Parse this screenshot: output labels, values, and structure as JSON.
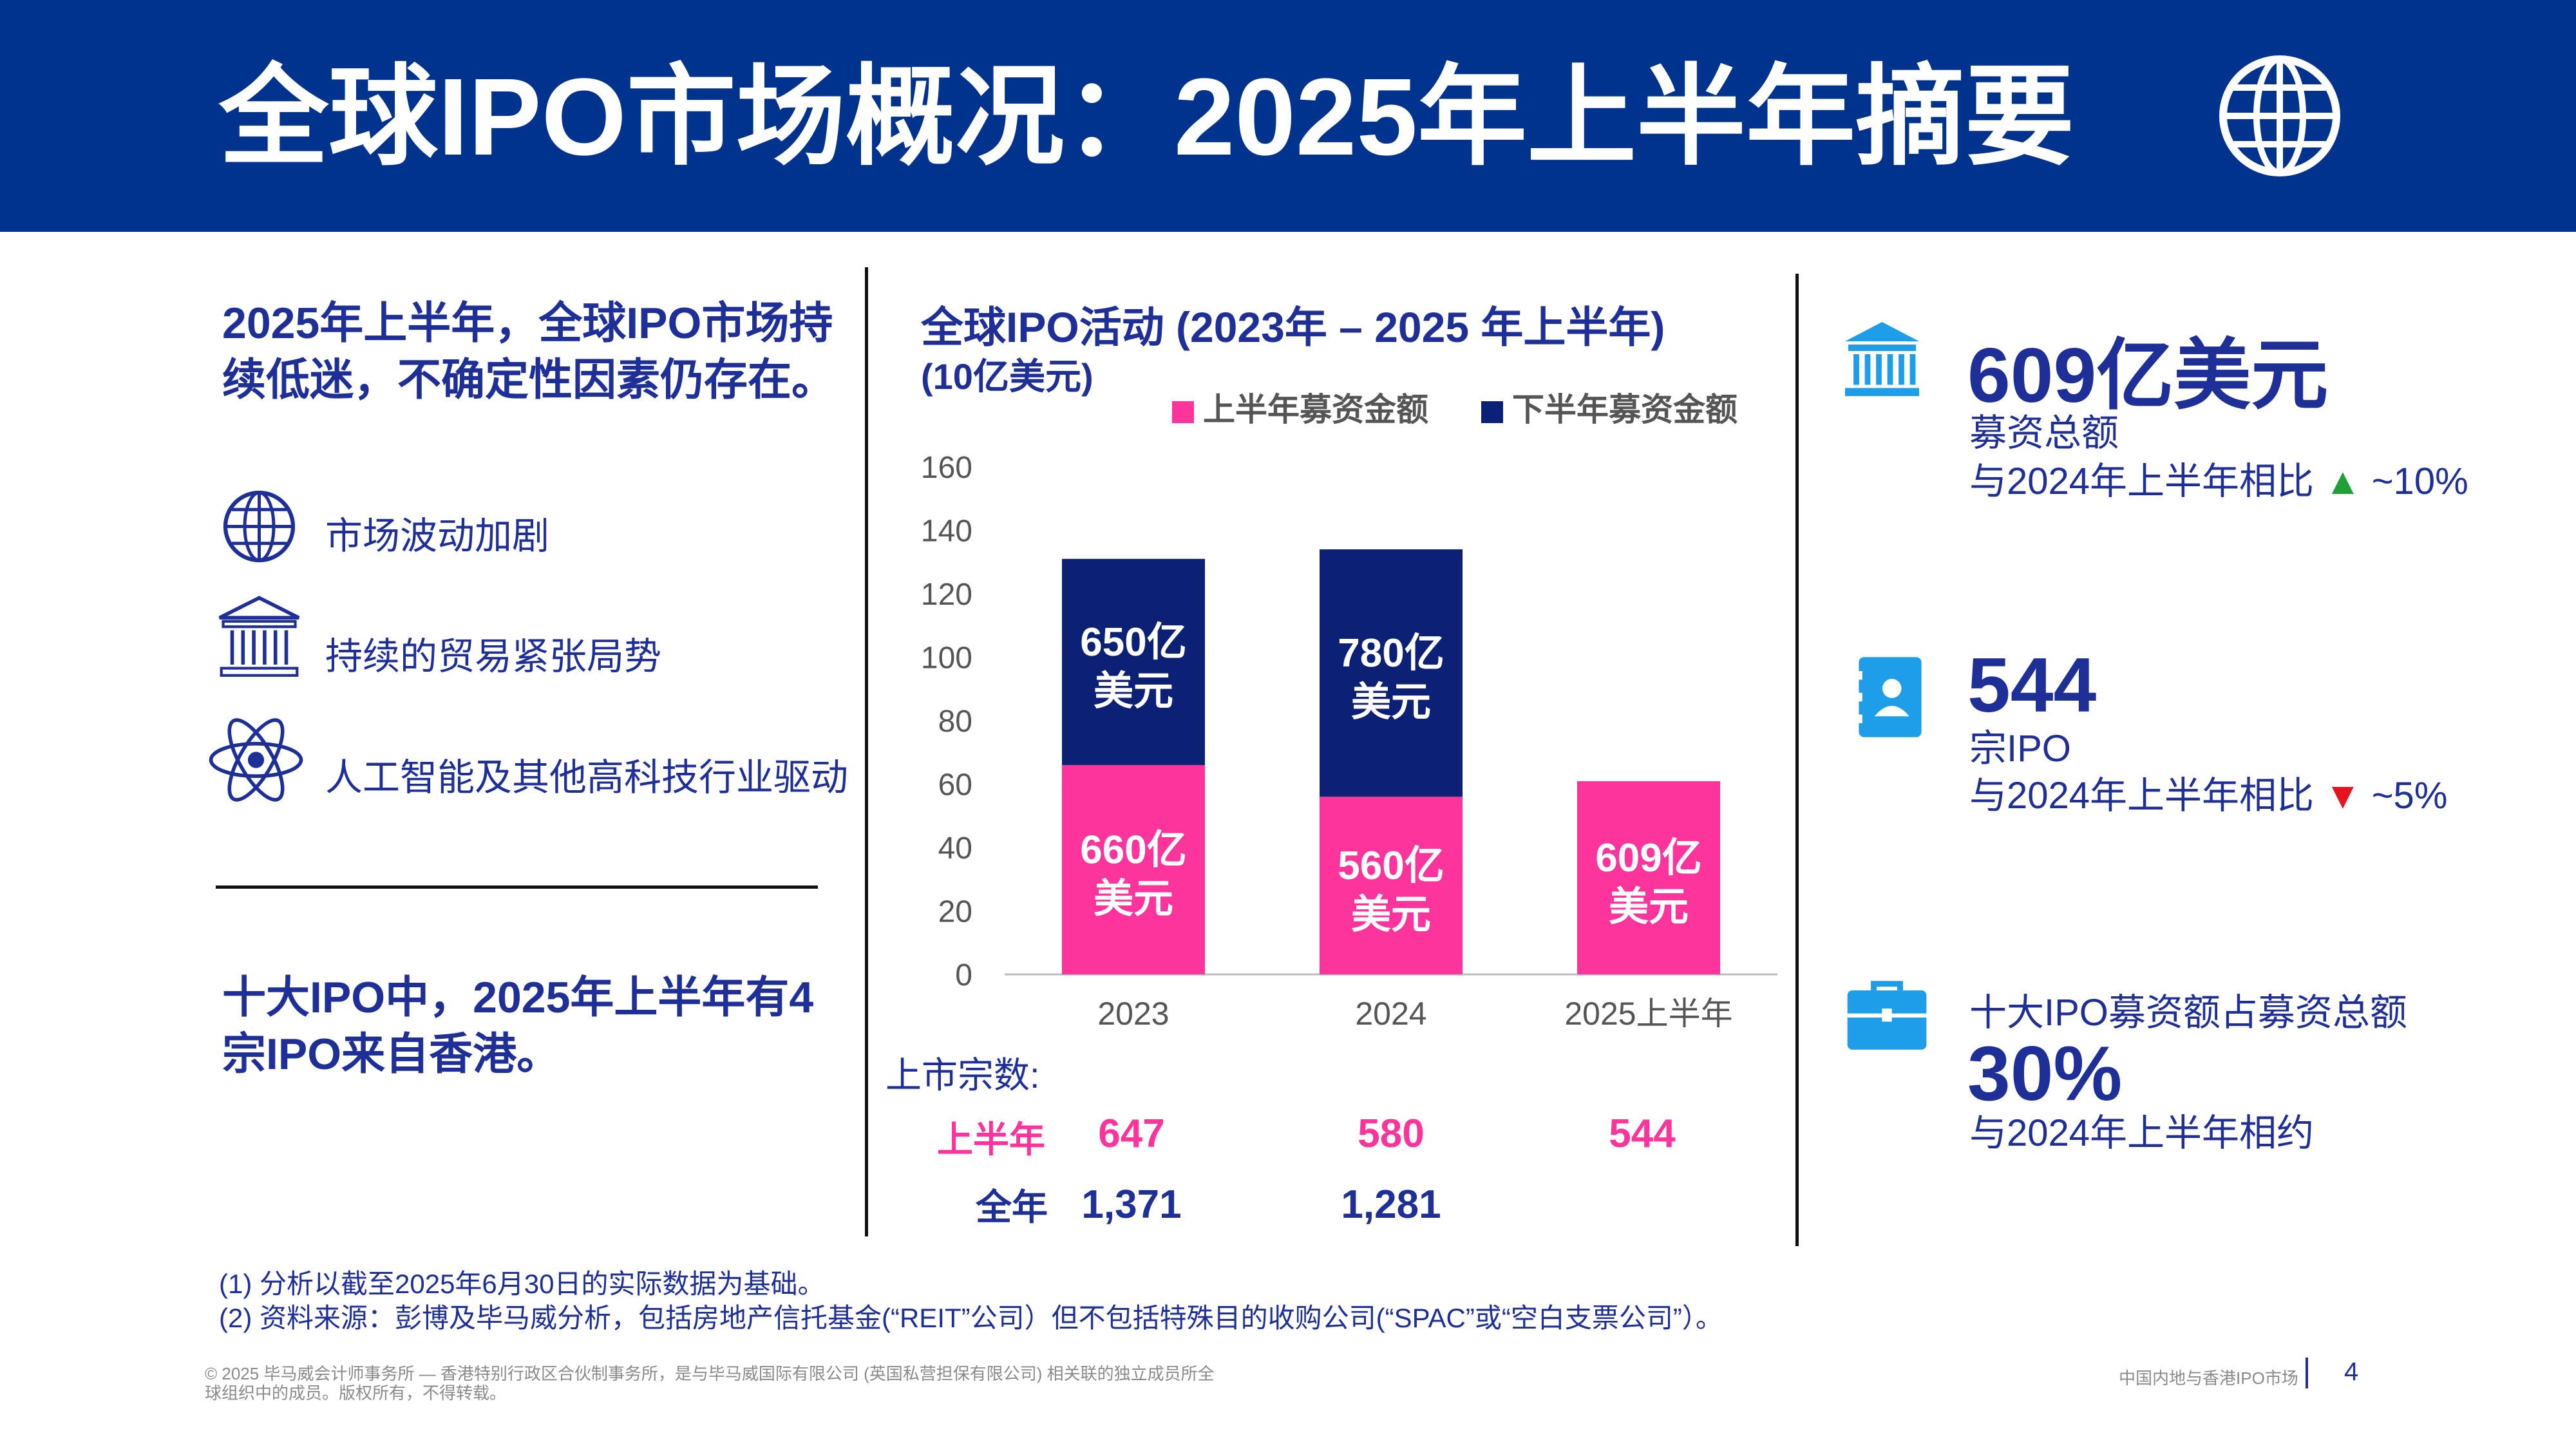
{
  "header": {
    "title": "全球IPO市场概况：2025年上半年摘要"
  },
  "left": {
    "lead": "2025年上半年，全球IPO市场持续低迷，不确定性因素仍存在。",
    "factors": [
      {
        "icon": "globe-icon",
        "label": "市场波动加剧"
      },
      {
        "icon": "bank-icon",
        "label": "持续的贸易紧张局势"
      },
      {
        "icon": "atom-icon",
        "label": "人工智能及其他高科技行业驱动"
      }
    ],
    "bottom": "十大IPO中，2025年上半年有4宗IPO来自香港。"
  },
  "chart": {
    "title": "全球IPO活动 (2023年 – 2025 年上半年)",
    "unit": "(10亿美元)",
    "listing_label": "上市宗数:",
    "h1_label": "上半年",
    "full_label": "全年",
    "h1_counts": [
      "647",
      "580",
      "544"
    ],
    "full_counts": [
      "1,371",
      "1,281",
      ""
    ]
  },
  "chart_data": {
    "type": "bar",
    "stacked": true,
    "title": "全球IPO活动 (2023年 – 2025 年上半年)",
    "ylabel": "(10亿美元)",
    "categories": [
      "2023",
      "2024",
      "2025上半年"
    ],
    "series": [
      {
        "name": "上半年募资金额",
        "values": [
          66,
          56,
          60.9
        ],
        "labels": [
          "660亿美元",
          "560亿美元",
          "609亿美元"
        ],
        "color": "#fd349c"
      },
      {
        "name": "下半年募资金额",
        "values": [
          65,
          78,
          null
        ],
        "labels": [
          "650亿美元",
          "780亿美元",
          ""
        ],
        "color": "#0c2176"
      }
    ],
    "ylim": [
      0,
      160
    ],
    "yticks": [
      0,
      20,
      40,
      60,
      80,
      100,
      120,
      140,
      160
    ],
    "legend": "top-right"
  },
  "stats": [
    {
      "icon": "bank-icon",
      "value": "609亿美元",
      "line1": "募资总额",
      "line2": "与2024年上半年相比",
      "arrow": "▲",
      "arrow_color": "#21a038",
      "change": "~10%"
    },
    {
      "icon": "contact-card-icon",
      "value": "544",
      "line1": "宗IPO",
      "line2": "与2024年上半年相比",
      "arrow": "▼",
      "arrow_color": "#e3141e",
      "change": "~5%"
    },
    {
      "icon": "briefcase-icon",
      "line1": "十大IPO募资额占募资总额",
      "value": "30%",
      "line2": "与2024年上半年相约"
    }
  ],
  "footnotes": [
    "(1)  分析以截至2025年6月30日的实际数据为基础。",
    "(2)  资料来源：彭博及毕马威分析，包括房地产信托基金(“REIT”公司）但不包括特殊目的收购公司(“SPAC”或“空白支票公司”）。"
  ],
  "copyright": [
    "© 2025 毕马威会计师事务所 — 香港特别行政区合伙制事务所，是与毕马威国际有限公司 (英国私营担保有限公司) 相关联的独立成员所全",
    "球组织中的成员。版权所有，不得转载。"
  ],
  "page": {
    "section": "中国内地与香港IPO市场",
    "number": "4"
  },
  "colors": {
    "header_bg": "#00338d",
    "navy": "#1e2f97",
    "pink": "#fd349c",
    "dark_bar": "#0c2176",
    "icon_cyan": "#1e9ee8"
  }
}
